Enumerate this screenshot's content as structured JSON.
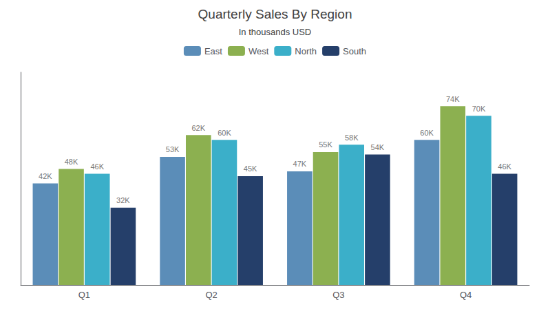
{
  "chart_data": {
    "type": "bar",
    "title": "Quarterly Sales By Region",
    "subtitle": "In thousands USD",
    "categories": [
      "Q1",
      "Q2",
      "Q3",
      "Q4"
    ],
    "series": [
      {
        "name": "East",
        "color": "#5B8DB8",
        "values": [
          42,
          53,
          47,
          60
        ],
        "value_labels": [
          "42K",
          "53K",
          "47K",
          "60K"
        ]
      },
      {
        "name": "West",
        "color": "#8CB050",
        "values": [
          48,
          62,
          55,
          74
        ],
        "value_labels": [
          "48K",
          "62K",
          "55K",
          "74K"
        ]
      },
      {
        "name": "North",
        "color": "#3BAFC9",
        "values": [
          46,
          60,
          58,
          70
        ],
        "value_labels": [
          "46K",
          "60K",
          "58K",
          "70K"
        ]
      },
      {
        "name": "South",
        "color": "#253F6A",
        "values": [
          32,
          45,
          54,
          46
        ],
        "value_labels": [
          "32K",
          "45K",
          "54K",
          "46K"
        ]
      }
    ],
    "ylim": [
      0,
      88
    ],
    "grid": false,
    "legend": "top",
    "data_labels": true,
    "tick_labels": "x"
  }
}
